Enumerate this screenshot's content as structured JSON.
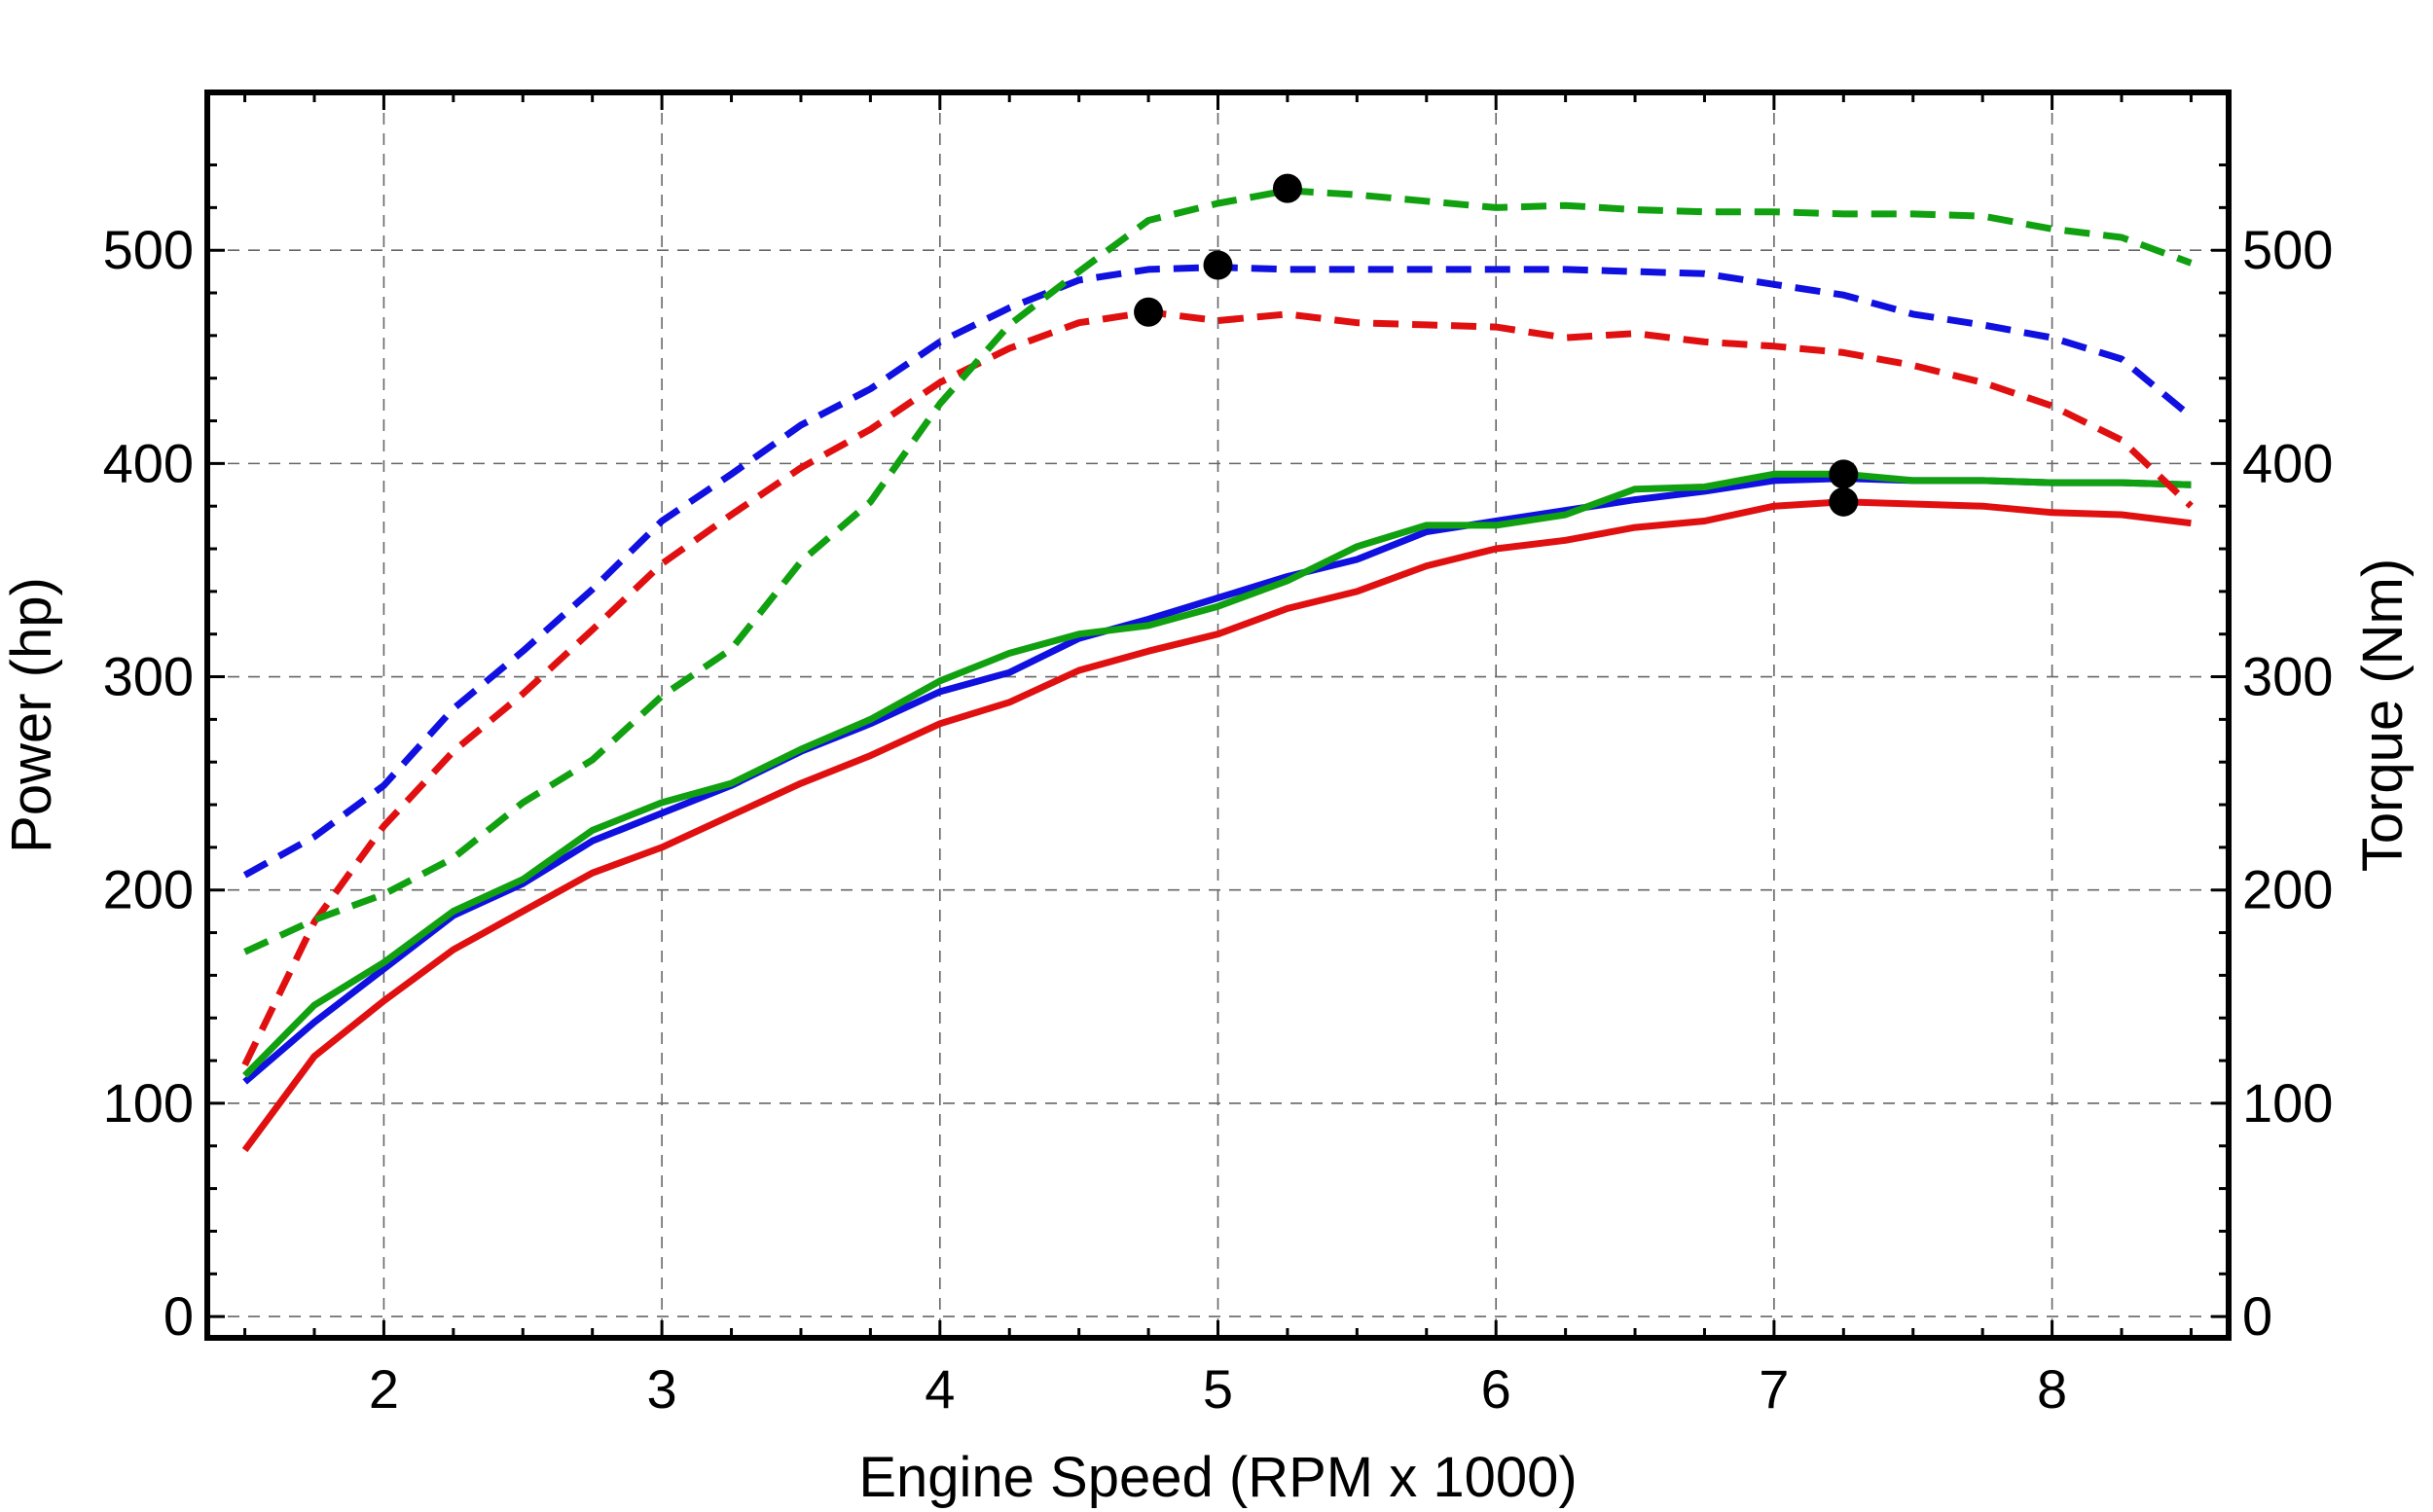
{
  "chart_data": {
    "type": "line",
    "title": "",
    "xlabel": "Engine Speed (RPM x 1000)",
    "ylabel": "Power (hp)",
    "ylabel_right": "Torque (Nm)",
    "xlim": [
      1.5,
      8.5
    ],
    "ylim": [
      0,
      560
    ],
    "xticks": [
      2,
      3,
      4,
      5,
      6,
      7,
      8
    ],
    "yticks": [
      0,
      100,
      200,
      300,
      400,
      500
    ],
    "yticks_right": [
      0,
      100,
      200,
      300,
      400,
      500
    ],
    "grid": true,
    "legend": "none",
    "x": [
      1.5,
      1.75,
      2.0,
      2.25,
      2.5,
      2.75,
      3.0,
      3.25,
      3.5,
      3.75,
      4.0,
      4.25,
      4.5,
      4.75,
      5.0,
      5.25,
      5.5,
      5.75,
      6.0,
      6.25,
      6.5,
      6.75,
      7.0,
      7.25,
      7.5,
      7.75,
      8.0,
      8.25,
      8.5
    ],
    "series": [
      {
        "kind": "power",
        "color": "#1010e0",
        "style": "solid",
        "values": [
          110,
          138,
          163,
          188,
          203,
          223,
          236,
          249,
          265,
          278,
          293,
          302,
          318,
          327,
          337,
          347,
          355,
          368,
          373,
          378,
          383,
          387,
          392,
          393,
          392,
          392,
          391,
          391,
          390
        ]
      },
      {
        "kind": "power",
        "color": "#e01010",
        "style": "solid",
        "values": [
          78,
          122,
          148,
          172,
          190,
          208,
          220,
          235,
          250,
          263,
          278,
          288,
          303,
          312,
          320,
          332,
          340,
          352,
          360,
          364,
          370,
          373,
          380,
          382,
          381,
          380,
          377,
          376,
          372
        ]
      },
      {
        "kind": "power",
        "color": "#10a010",
        "style": "solid",
        "values": [
          113,
          146,
          166,
          190,
          205,
          228,
          241,
          250,
          266,
          280,
          298,
          311,
          320,
          324,
          333,
          345,
          361,
          371,
          371,
          376,
          388,
          389,
          395,
          395,
          392,
          392,
          391,
          391,
          390
        ]
      },
      {
        "kind": "torque",
        "color": "#1010e0",
        "style": "dashed",
        "values": [
          207,
          225,
          249,
          285,
          312,
          341,
          373,
          395,
          418,
          435,
          457,
          473,
          486,
          491,
          492,
          491,
          491,
          491,
          491,
          491,
          490,
          489,
          484,
          479,
          470,
          465,
          459,
          449,
          422
        ]
      },
      {
        "kind": "torque",
        "color": "#e01010",
        "style": "dashed",
        "values": [
          118,
          185,
          230,
          265,
          292,
          322,
          353,
          376,
          398,
          416,
          438,
          454,
          466,
          471,
          467,
          470,
          466,
          465,
          464,
          459,
          461,
          457,
          455,
          452,
          446,
          438,
          427,
          411,
          380
        ]
      },
      {
        "kind": "torque",
        "color": "#10a010",
        "style": "dashed",
        "values": [
          171,
          186,
          198,
          215,
          241,
          261,
          291,
          313,
          354,
          382,
          428,
          465,
          490,
          514,
          522,
          528,
          526,
          523,
          520,
          521,
          519,
          518,
          518,
          517,
          517,
          516,
          510,
          506,
          494
        ]
      }
    ],
    "peak_markers": [
      {
        "x": 4.75,
        "y": 471
      },
      {
        "x": 5.0,
        "y": 493
      },
      {
        "x": 5.25,
        "y": 529
      },
      {
        "x": 7.25,
        "y": 395
      },
      {
        "x": 7.25,
        "y": 382
      }
    ]
  }
}
